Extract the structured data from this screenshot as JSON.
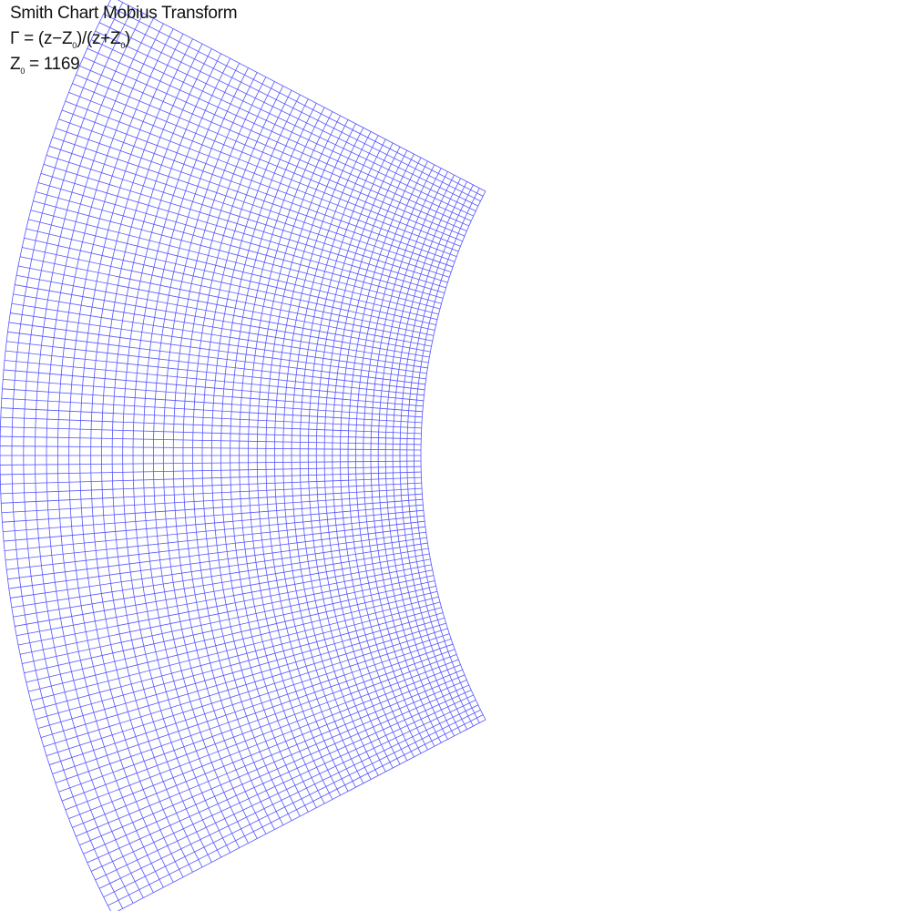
{
  "caption": {
    "title": "Smith Chart Mobius Transform",
    "formula": {
      "part1": "Γ = (z−Z",
      "sub1": "0",
      "part2": ")/(z+Z",
      "sub2": "0",
      "part3": ")"
    },
    "z0": {
      "symbol": "Z",
      "sub": "0",
      "value_text": " = 1169"
    }
  },
  "grid": {
    "line_color": "#5555ff",
    "background": "#ffffff"
  }
}
